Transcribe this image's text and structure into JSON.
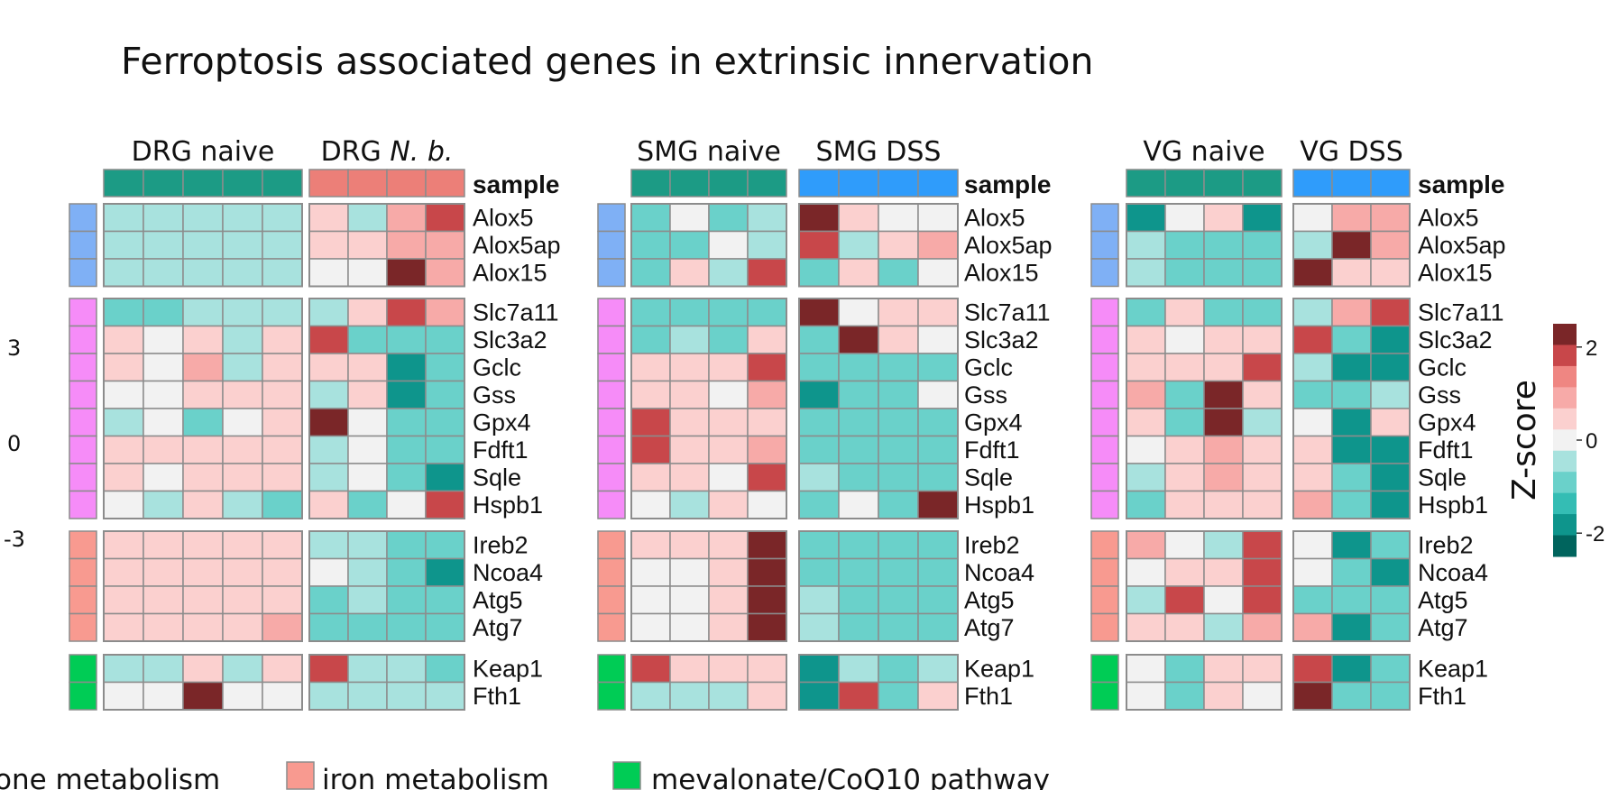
{
  "title": "Ferroptosis associated genes in extrinsic innervation",
  "left_axis_labels": [
    "3",
    "0",
    "-3"
  ],
  "legend_items": [
    {
      "label": "one metabolism",
      "color": ""
    },
    {
      "label": "iron metabolism",
      "color": "#f89a90"
    },
    {
      "label": "mevalonate/CoQ10 pathway",
      "color": "#00cc55"
    }
  ],
  "colorbar": {
    "title": "Z-score",
    "ticks": [
      "2",
      "0",
      "-2"
    ],
    "colors": [
      "#7a2628",
      "#c8474a",
      "#ef8682",
      "#f7aaa8",
      "#fbd0cf",
      "#f2f2f2",
      "#a8e2de",
      "#6ad1ca",
      "#34bdb4",
      "#0e958c",
      "#00645d"
    ]
  },
  "chart_data": {
    "type": "heatmap",
    "title": "Ferroptosis associated genes in extrinsic innervation",
    "scale": "Z-score, approx -2.5 to 2.5",
    "annotation_row": "sample",
    "groups": [
      {
        "colors": [
          "#7fb0f5",
          "#7fb0f5",
          "#7fb0f5"
        ],
        "genes": [
          "Alox5",
          "Alox5ap",
          "Alox15"
        ]
      },
      {
        "colors": [
          "#f68cf8",
          "#f68cf8",
          "#f68cf8",
          "#f68cf8",
          "#f68cf8",
          "#f68cf8",
          "#f68cf8",
          "#f68cf8"
        ],
        "genes": [
          "Slc7a11",
          "Slc3a2",
          "Gclc",
          "Gss",
          "Gpx4",
          "Fdft1",
          "Sqle",
          "Hspb1"
        ]
      },
      {
        "colors": [
          "#f89a90",
          "#f89a90",
          "#f89a90",
          "#f89a90"
        ],
        "genes": [
          "Ireb2",
          "Ncoa4",
          "Atg5",
          "Atg7"
        ]
      },
      {
        "colors": [
          "#00cc55",
          "#00cc55"
        ],
        "genes": [
          "Keap1",
          "Fth1"
        ]
      }
    ],
    "panels": [
      {
        "sample_label": "sample",
        "conditions": [
          {
            "label_parts": [
              "DRG naive",
              ""
            ],
            "sample_color": "#1c9b85",
            "values": [
              [
                -0.5,
                -0.5,
                -0.5,
                -0.6,
                -0.5
              ],
              [
                -0.7,
                -0.7,
                -0.5,
                -0.7,
                -0.5
              ],
              [
                -0.5,
                -0.5,
                -0.5,
                -0.5,
                -0.5
              ],
              [
                -0.8,
                -0.8,
                -0.6,
                -0.7,
                -0.6
              ],
              [
                0.4,
                0,
                0.4,
                -0.4,
                0.4
              ],
              [
                0.4,
                0,
                1.1,
                -0.7,
                0.4
              ],
              [
                0,
                0,
                0.7,
                0.7,
                0.7
              ],
              [
                -0.5,
                0,
                -0.8,
                0,
                0.4
              ],
              [
                0.7,
                0.4,
                0.7,
                0.4,
                0.7
              ],
              [
                0.7,
                0,
                0.7,
                0.7,
                0.7
              ],
              [
                0,
                -0.5,
                0.4,
                -0.5,
                -1.1
              ],
              [
                0.4,
                0.4,
                0.7,
                0.4,
                0.4
              ],
              [
                0.4,
                0.4,
                0.7,
                0.4,
                0.4
              ],
              [
                0.4,
                0.4,
                0.7,
                0.4,
                0.4
              ],
              [
                0.4,
                0.4,
                0.4,
                0.4,
                1.0
              ],
              [
                -0.5,
                -0.5,
                0.4,
                -0.5,
                0.7
              ],
              [
                0,
                0,
                2.6,
                0,
                0
              ]
            ]
          },
          {
            "label_parts": [
              "DRG ",
              "N. b."
            ],
            "sample_color": "#ec7f78",
            "values": [
              [
                0.4,
                -0.5,
                1.1,
                1.8
              ],
              [
                0.4,
                0.7,
                1.1,
                1.1
              ],
              [
                0,
                0,
                2.6,
                1.1
              ],
              [
                -0.5,
                0.4,
                1.8,
                1.1
              ],
              [
                1.8,
                -1.1,
                -0.8,
                -0.8
              ],
              [
                0.7,
                0.4,
                -1.8,
                -0.8
              ],
              [
                -0.5,
                0.7,
                -1.8,
                -0.8
              ],
              [
                2.6,
                0,
                -0.8,
                -0.8
              ],
              [
                -0.5,
                0,
                -1.1,
                -1.1
              ],
              [
                -0.5,
                0,
                -1.1,
                -1.8
              ],
              [
                0.4,
                -1.1,
                0,
                1.8
              ],
              [
                -0.5,
                -0.5,
                -1.1,
                -1.1
              ],
              [
                0,
                -0.5,
                -1.1,
                -1.8
              ],
              [
                -0.8,
                -0.5,
                -1.1,
                -1.1
              ],
              [
                -0.8,
                -0.8,
                -1.1,
                -1.1
              ],
              [
                1.8,
                -0.5,
                -0.5,
                -1.1
              ],
              [
                -0.5,
                -0.5,
                -0.5,
                -0.5
              ]
            ]
          }
        ]
      },
      {
        "sample_label": "sample",
        "conditions": [
          {
            "label_parts": [
              "SMG naive",
              ""
            ],
            "sample_color": "#1c9b85",
            "values": [
              [
                -1.1,
                0,
                -0.8,
                -0.5
              ],
              [
                -0.8,
                -1.1,
                0,
                -0.5
              ],
              [
                -1.1,
                0.4,
                -0.5,
                1.8
              ],
              [
                -0.8,
                -0.8,
                -0.8,
                -1.1
              ],
              [
                -0.8,
                -0.5,
                -0.8,
                0.7
              ],
              [
                0.7,
                0.7,
                0.4,
                1.8
              ],
              [
                0.7,
                0.7,
                0,
                1.1
              ],
              [
                1.8,
                0.7,
                0.4,
                0.4
              ],
              [
                1.8,
                0.7,
                0.7,
                1.1
              ],
              [
                0.7,
                0.7,
                0,
                1.8
              ],
              [
                0,
                -0.5,
                0.4,
                0
              ],
              [
                0.4,
                0.4,
                0.4,
                2.6
              ],
              [
                0,
                0,
                0.4,
                2.6
              ],
              [
                0,
                0,
                0.4,
                2.6
              ],
              [
                0,
                0,
                0.7,
                2.6
              ],
              [
                1.8,
                0.4,
                0.4,
                0.7
              ],
              [
                -0.5,
                -0.5,
                -0.5,
                0.7
              ]
            ]
          },
          {
            "label_parts": [
              "SMG DSS",
              ""
            ],
            "sample_color": "#2f9cfb",
            "values": [
              [
                2.6,
                0.7,
                0,
                0
              ],
              [
                1.8,
                -0.5,
                0.4,
                1.1
              ],
              [
                -0.8,
                0.7,
                -1.1,
                0
              ],
              [
                2.6,
                0,
                0.4,
                0.7
              ],
              [
                -1.1,
                2.6,
                0.4,
                0
              ],
              [
                -0.8,
                -0.8,
                -0.8,
                -0.8
              ],
              [
                -1.8,
                -0.8,
                -1.1,
                0
              ],
              [
                -1.1,
                -0.8,
                -0.8,
                -0.8
              ],
              [
                -0.8,
                -0.8,
                -0.8,
                -0.8
              ],
              [
                -0.5,
                -0.8,
                -1.1,
                -1.1
              ],
              [
                -1.1,
                0,
                -0.8,
                2.6
              ],
              [
                -1.1,
                -0.8,
                -0.8,
                -1.1
              ],
              [
                -0.8,
                -0.8,
                -0.8,
                -0.8
              ],
              [
                -0.5,
                -0.8,
                -0.8,
                -0.8
              ],
              [
                -0.5,
                -0.8,
                -0.8,
                -0.8
              ],
              [
                -1.8,
                -0.5,
                -0.8,
                -0.5
              ],
              [
                -1.8,
                1.8,
                -0.8,
                0.4
              ]
            ]
          }
        ]
      },
      {
        "sample_label": "sample",
        "conditions": [
          {
            "label_parts": [
              "VG naive",
              ""
            ],
            "sample_color": "#1c9b85",
            "values": [
              [
                -1.8,
                0,
                0.4,
                -1.8
              ],
              [
                -0.5,
                -0.8,
                -0.8,
                -0.8
              ],
              [
                -0.5,
                -0.8,
                -1.1,
                -0.8
              ],
              [
                -0.8,
                0.4,
                -1.1,
                -0.8
              ],
              [
                0.4,
                0,
                0.4,
                0.4
              ],
              [
                0.4,
                0.7,
                0.4,
                1.8
              ],
              [
                1.1,
                -0.8,
                2.6,
                0.4
              ],
              [
                0.4,
                -1.1,
                2.6,
                -0.5
              ],
              [
                0,
                0.7,
                1.1,
                0.7
              ],
              [
                -0.5,
                0.4,
                1.1,
                0.7
              ],
              [
                -0.8,
                0.7,
                0.7,
                0.7
              ],
              [
                1.1,
                0,
                -0.5,
                1.8
              ],
              [
                0,
                0.4,
                0.4,
                1.8
              ],
              [
                -0.5,
                1.8,
                0,
                1.8
              ],
              [
                0.7,
                0.4,
                -0.5,
                1.1
              ],
              [
                0,
                -0.8,
                0.4,
                0.7
              ],
              [
                0,
                -0.8,
                0.4,
                0
              ]
            ]
          },
          {
            "label_parts": [
              "VG DSS",
              ""
            ],
            "sample_color": "#2f9cfb",
            "values": [
              [
                0,
                1.1,
                1.1
              ],
              [
                -0.5,
                2.6,
                1.1
              ],
              [
                2.6,
                0.7,
                0.4
              ],
              [
                -0.5,
                1.1,
                1.8
              ],
              [
                1.8,
                -1.1,
                -1.8
              ],
              [
                -0.5,
                -1.8,
                -1.8
              ],
              [
                -0.8,
                -0.8,
                -0.5
              ],
              [
                0,
                -1.8,
                0.7
              ],
              [
                0.7,
                -1.8,
                -1.8
              ],
              [
                0.7,
                -1.1,
                -1.8
              ],
              [
                1.1,
                -1.1,
                -1.8
              ],
              [
                0,
                -1.8,
                -1.1
              ],
              [
                0,
                -1.1,
                -1.8
              ],
              [
                -0.8,
                -0.8,
                -1.1
              ],
              [
                1.1,
                -1.8,
                -1.1
              ],
              [
                1.8,
                -1.8,
                -0.8
              ],
              [
                2.6,
                -0.8,
                -1.1
              ]
            ]
          }
        ]
      }
    ]
  }
}
